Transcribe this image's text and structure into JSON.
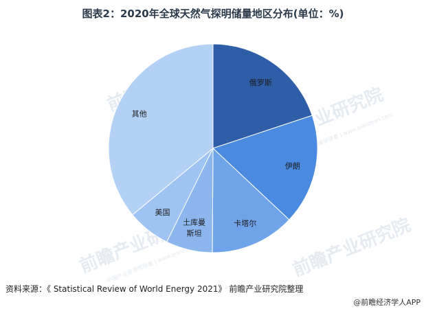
{
  "chart_data": {
    "type": "pie",
    "title": "图表2：2020年全球天然气探明储量地区分布(单位：%)",
    "categories": [
      "俄罗斯",
      "伊朗",
      "卡塔尔",
      "土库曼斯坦",
      "美国",
      "其他"
    ],
    "values": [
      19.9,
      17.1,
      13.1,
      7.2,
      6.7,
      36.0
    ],
    "colors": [
      "#2e5ea8",
      "#4a8ae0",
      "#6fa3ea",
      "#8db6ee",
      "#9fc3f2",
      "#b3d0f5"
    ],
    "label_lines": [
      [
        "俄罗斯"
      ],
      [
        "伊朗"
      ],
      [
        "卡塔尔"
      ],
      [
        "土库曼",
        "斯坦"
      ],
      [
        "美国"
      ],
      [
        "其他"
      ]
    ],
    "legend": "none"
  },
  "source": "资料来源：《 Statistical Review of World Energy 2021》 前瞻产业研究院整理",
  "brand": "@前瞻经济学人APP",
  "watermark": {
    "main": "前瞻产业研究院",
    "sub": "中国产业咨询领导者 | www.qianzhan.com"
  }
}
